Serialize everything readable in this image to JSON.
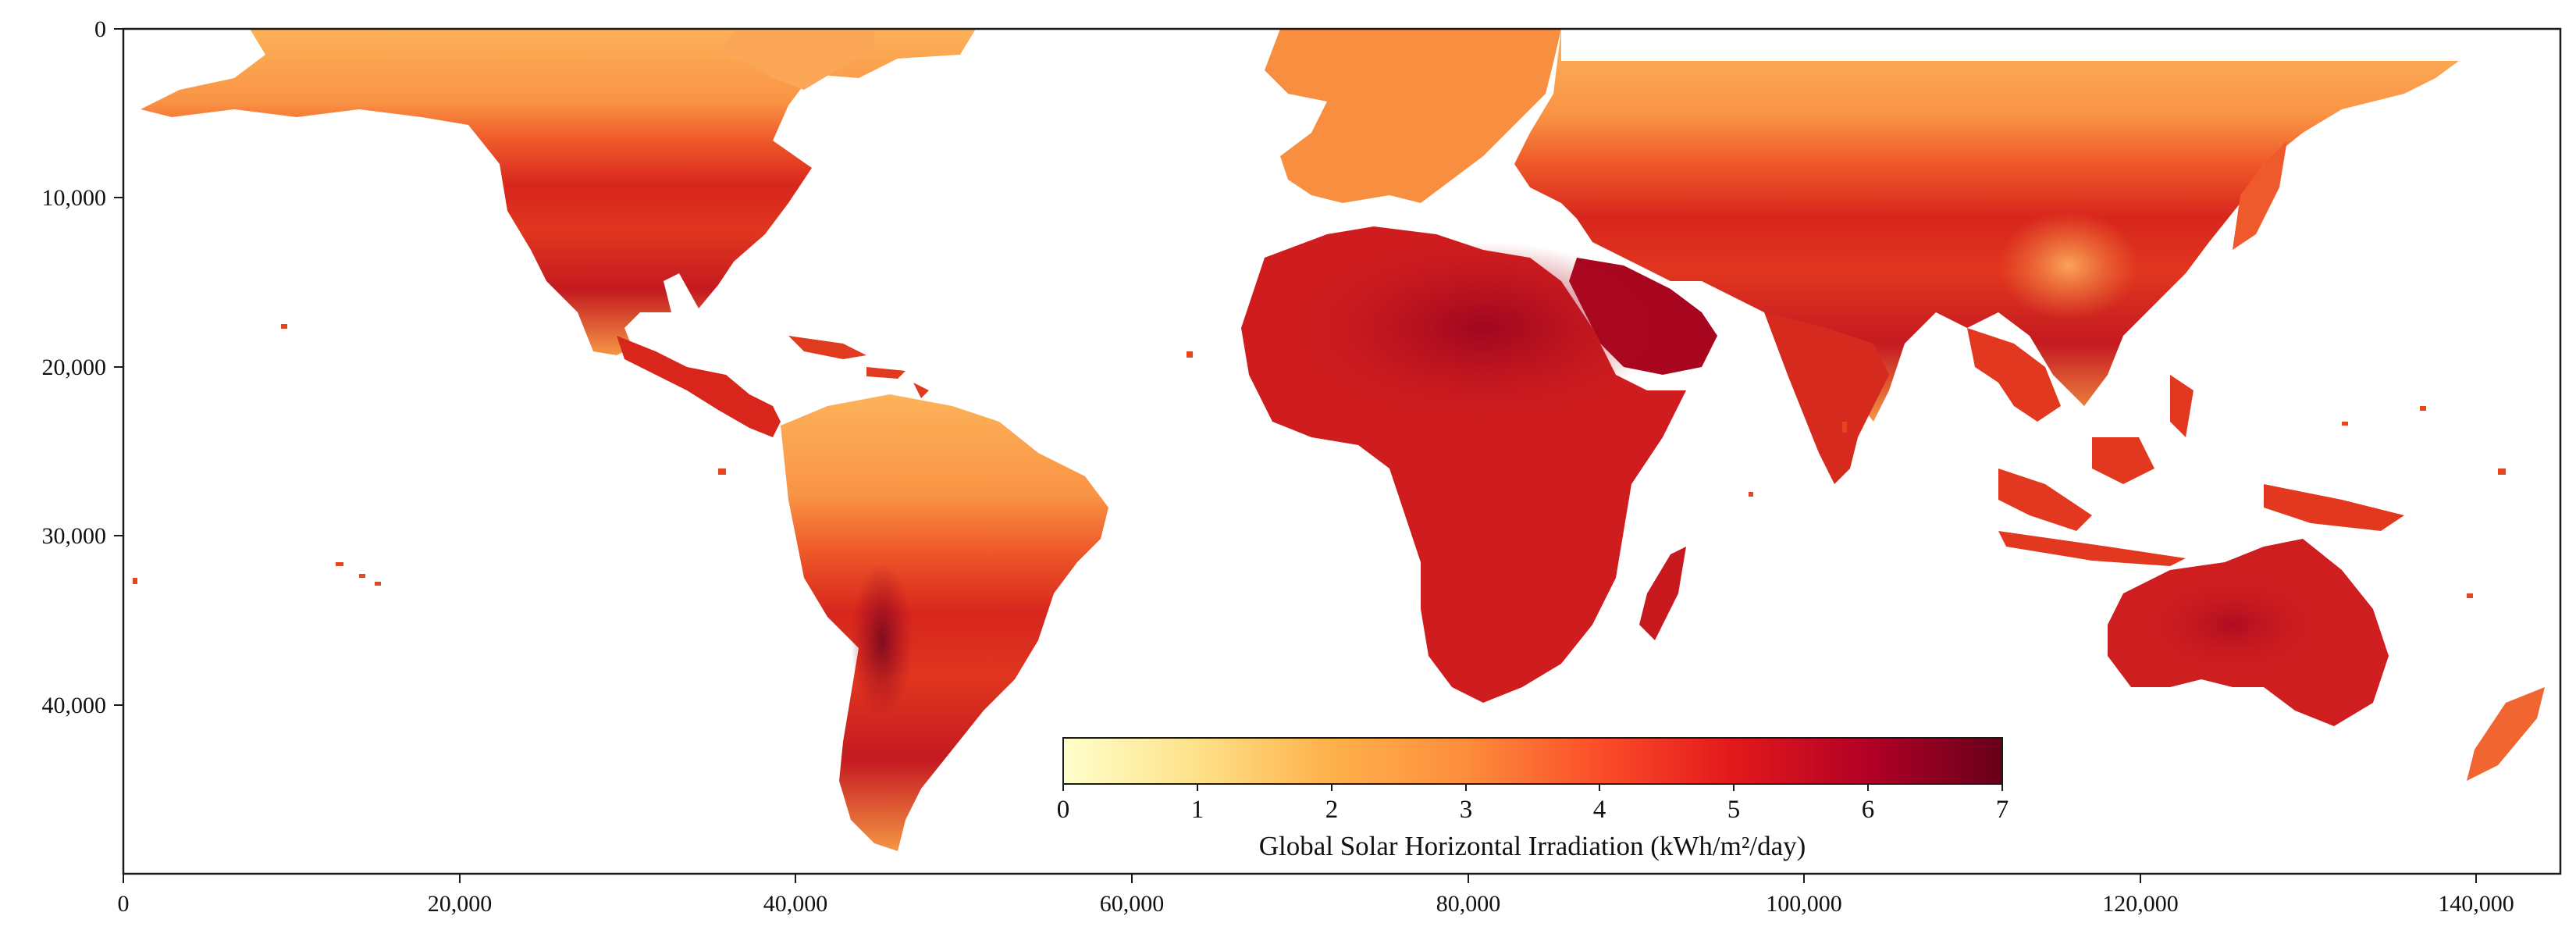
{
  "x_axis": {
    "ticks": [
      "0",
      "20,000",
      "40,000",
      "60,000",
      "80,000",
      "100,000",
      "120,000",
      "140,000"
    ],
    "range": [
      0,
      145000
    ]
  },
  "y_axis": {
    "ticks": [
      "0",
      "10,000",
      "20,000",
      "30,000",
      "40,000"
    ],
    "range": [
      0,
      50000
    ],
    "inverted": true
  },
  "colorbar": {
    "ticks": [
      "0",
      "1",
      "2",
      "3",
      "4",
      "5",
      "6",
      "7"
    ],
    "range": [
      0,
      7
    ],
    "label": "Global Solar Horizontal Irradiation (kWh/m²/day)",
    "colormap": "YlOrRd",
    "stops": [
      "#ffffcc",
      "#fee28a",
      "#feb24c",
      "#fd8d3c",
      "#fc4e2a",
      "#e31a1c",
      "#b10026",
      "#67001a"
    ]
  },
  "colors": {
    "ocean": "#ffffff",
    "frame": "#1a1a1a",
    "high_latitude_land": "#fdb25a",
    "mid_latitude_land": "#f36a2e",
    "tropical_land": "#d92a1e",
    "desert_land": "#a8061f"
  }
}
